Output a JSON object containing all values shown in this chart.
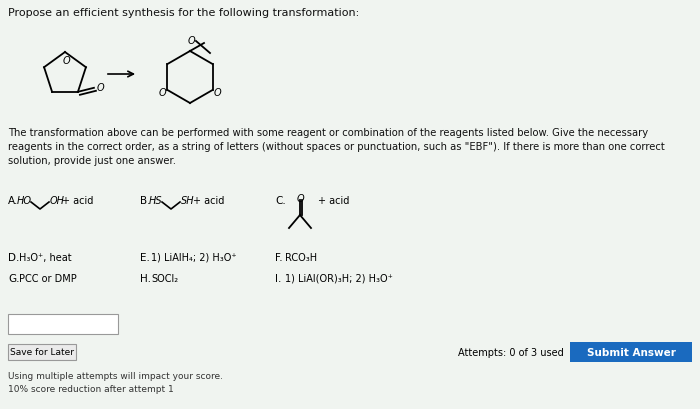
{
  "title": "Propose an efficient synthesis for the following transformation:",
  "background_color": "#e8ede8",
  "text_color": "#111111",
  "body_text_line1": "The transformation above can be performed with some reagent or combination of the reagents listed below. Give the necessary",
  "body_text_line2": "reagents in the correct order, as a string of letters (without spaces or punctuation, such as \"EBF\"). If there is more than one correct",
  "body_text_line3": "solution, provide just one answer.",
  "save_button": "Save for Later",
  "attempts_text": "Attempts: 0 of 3 used",
  "submit_button": "Submit Answer",
  "submit_button_color": "#1a6abf",
  "footer_line1": "Using multiple attempts will impact your score.",
  "footer_line2": "10% score reduction after attempt 1",
  "reagent_A_label": "A.",
  "reagent_A_pre": "HO",
  "reagent_A_post": "OH",
  "reagent_A_suffix": "+ acid",
  "reagent_B_label": "B.",
  "reagent_B_pre": "HS",
  "reagent_B_post": "SH",
  "reagent_B_suffix": "+ acid",
  "reagent_C_label": "C.",
  "reagent_C_suffix": "+ acid",
  "reagent_D": "D. H₃O⁺, heat",
  "reagent_E": "E. 1) LiAlH₄; 2) H₃O⁺",
  "reagent_F": "F. RCO₃H",
  "reagent_G": "G. PCC or DMP",
  "reagent_H": "H. SOCl₂",
  "reagent_I": "I. 1) LiAl(OR)₃H; 2) H₃O⁺"
}
